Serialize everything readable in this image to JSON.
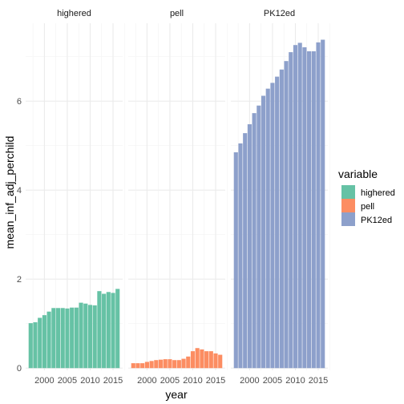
{
  "chart_data": {
    "type": "bar",
    "facets": [
      "highered",
      "pell",
      "PK12ed"
    ],
    "x": [
      1997,
      1998,
      1999,
      2000,
      2001,
      2002,
      2003,
      2004,
      2005,
      2006,
      2007,
      2008,
      2009,
      2010,
      2011,
      2012,
      2013,
      2014,
      2015,
      2016
    ],
    "series": [
      {
        "name": "highered",
        "color": "#66c2a5",
        "values": [
          1.01,
          1.03,
          1.13,
          1.19,
          1.27,
          1.35,
          1.35,
          1.35,
          1.34,
          1.36,
          1.36,
          1.47,
          1.45,
          1.42,
          1.41,
          1.73,
          1.67,
          1.71,
          1.69,
          1.78
        ]
      },
      {
        "name": "pell",
        "color": "#fc8d62",
        "values": [
          0.11,
          0.11,
          0.11,
          0.14,
          0.16,
          0.18,
          0.19,
          0.2,
          0.2,
          0.18,
          0.18,
          0.21,
          0.26,
          0.38,
          0.45,
          0.42,
          0.38,
          0.38,
          0.33,
          0.3
        ]
      },
      {
        "name": "PK12ed",
        "color": "#8da0cb",
        "values": [
          4.85,
          5.05,
          5.28,
          5.48,
          5.73,
          5.9,
          6.12,
          6.28,
          6.41,
          6.55,
          6.71,
          6.9,
          7.1,
          7.26,
          7.31,
          7.21,
          7.12,
          7.12,
          7.32,
          7.38
        ]
      }
    ],
    "xlabel": "year",
    "ylabel": "mean_inf_adj_perchild",
    "x_ticks": [
      2000,
      2005,
      2010,
      2015
    ],
    "y_ticks": [
      0,
      2,
      4,
      6
    ],
    "ylim": [
      -0.05,
      7.75
    ],
    "legend": {
      "title": "variable",
      "entries": [
        "highered",
        "pell",
        "PK12ed"
      ],
      "position": "right"
    },
    "grid": true,
    "theme": "minimal"
  }
}
